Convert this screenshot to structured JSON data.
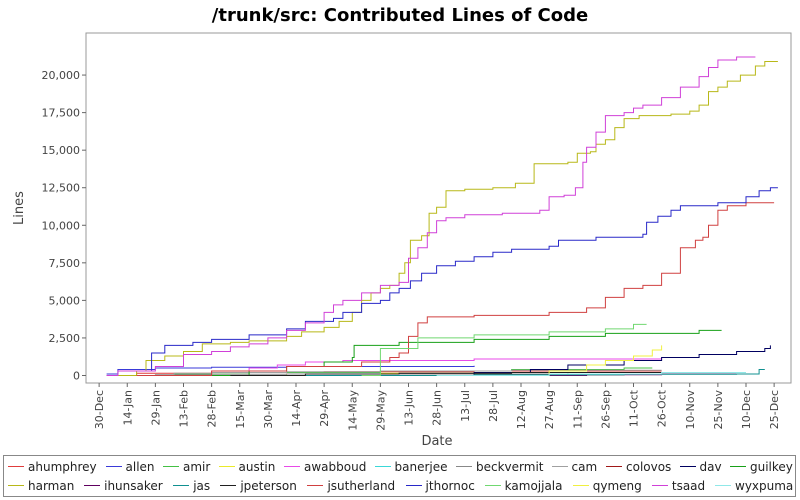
{
  "chart_data": {
    "type": "line",
    "title": "/trunk/src: Contributed Lines of Code",
    "xlabel": "Date",
    "ylabel": "Lines",
    "x_unit": "days since 30-Dec",
    "xlim": [
      -7,
      369
    ],
    "ylim": [
      -500,
      22800
    ],
    "x_ticks": [
      {
        "label": "30-Dec",
        "day": 0
      },
      {
        "label": "14-Jan",
        "day": 15
      },
      {
        "label": "29-Jan",
        "day": 30
      },
      {
        "label": "13-Feb",
        "day": 45
      },
      {
        "label": "28-Feb",
        "day": 60
      },
      {
        "label": "15-Mar",
        "day": 75
      },
      {
        "label": "30-Mar",
        "day": 90
      },
      {
        "label": "14-Apr",
        "day": 105
      },
      {
        "label": "29-Apr",
        "day": 120
      },
      {
        "label": "14-May",
        "day": 135
      },
      {
        "label": "29-May",
        "day": 150
      },
      {
        "label": "13-Jun",
        "day": 165
      },
      {
        "label": "28-Jun",
        "day": 180
      },
      {
        "label": "13-Jul",
        "day": 195
      },
      {
        "label": "28-Jul",
        "day": 210
      },
      {
        "label": "12-Aug",
        "day": 225
      },
      {
        "label": "27-Aug",
        "day": 240
      },
      {
        "label": "11-Sep",
        "day": 255
      },
      {
        "label": "26-Sep",
        "day": 270
      },
      {
        "label": "11-Oct",
        "day": 285
      },
      {
        "label": "26-Oct",
        "day": 300
      },
      {
        "label": "10-Nov",
        "day": 315
      },
      {
        "label": "25-Nov",
        "day": 330
      },
      {
        "label": "10-Dec",
        "day": 345
      },
      {
        "label": "25-Dec",
        "day": 360
      }
    ],
    "y_ticks": [
      {
        "label": "0",
        "value": 0
      },
      {
        "label": "2,500",
        "value": 2500
      },
      {
        "label": "5,000",
        "value": 5000
      },
      {
        "label": "7,500",
        "value": 7500
      },
      {
        "label": "10,000",
        "value": 10000
      },
      {
        "label": "12,500",
        "value": 12500
      },
      {
        "label": "15,000",
        "value": 15000
      },
      {
        "label": "17,500",
        "value": 17500
      },
      {
        "label": "20,000",
        "value": 20000
      }
    ],
    "legend_position": "bottom",
    "series": [
      {
        "name": "ahumphrey",
        "color": "#e03c3c",
        "points": [
          [
            4,
            0
          ],
          [
            20,
            150
          ],
          [
            60,
            200
          ],
          [
            120,
            250
          ],
          [
            200,
            300
          ],
          [
            300,
            300
          ]
        ]
      },
      {
        "name": "allen",
        "color": "#3a3ad8",
        "points": [
          [
            4,
            100
          ],
          [
            10,
            400
          ],
          [
            30,
            500
          ],
          [
            60,
            550
          ],
          [
            100,
            600
          ],
          [
            150,
            600
          ],
          [
            200,
            650
          ]
        ]
      },
      {
        "name": "amir",
        "color": "#44c044",
        "points": [
          [
            25,
            0
          ],
          [
            40,
            100
          ],
          [
            80,
            200
          ],
          [
            150,
            300
          ],
          [
            220,
            400
          ],
          [
            280,
            500
          ],
          [
            295,
            500
          ]
        ]
      },
      {
        "name": "austin",
        "color": "#eaea2a",
        "points": [
          [
            55,
            0
          ],
          [
            100,
            100
          ],
          [
            150,
            150
          ],
          [
            200,
            200
          ]
        ]
      },
      {
        "name": "awabboud",
        "color": "#e84ae8",
        "points": [
          [
            50,
            0
          ],
          [
            60,
            300
          ],
          [
            80,
            500
          ],
          [
            95,
            700
          ],
          [
            110,
            900
          ],
          [
            130,
            1000
          ],
          [
            200,
            1100
          ],
          [
            300,
            1200
          ]
        ]
      },
      {
        "name": "banerjee",
        "color": "#3ad8d8",
        "points": [
          [
            150,
            0
          ],
          [
            200,
            100
          ],
          [
            250,
            150
          ]
        ]
      },
      {
        "name": "beckvermit",
        "color": "#888888",
        "points": [
          [
            4,
            0
          ],
          [
            30,
            50
          ],
          [
            60,
            80
          ],
          [
            100,
            100
          ],
          [
            150,
            100
          ],
          [
            200,
            100
          ],
          [
            295,
            100
          ]
        ]
      },
      {
        "name": "cam",
        "color": "#a0a0a0",
        "points": [
          [
            25,
            0
          ],
          [
            40,
            150
          ],
          [
            60,
            200
          ],
          [
            100,
            250
          ],
          [
            150,
            300
          ],
          [
            220,
            350
          ],
          [
            300,
            350
          ]
        ]
      },
      {
        "name": "colovos",
        "color": "#a01818",
        "points": [
          [
            120,
            0
          ],
          [
            200,
            50
          ],
          [
            280,
            100
          ],
          [
            345,
            100
          ]
        ]
      },
      {
        "name": "dav",
        "color": "#000060",
        "points": [
          [
            160,
            0
          ],
          [
            200,
            200
          ],
          [
            230,
            400
          ],
          [
            250,
            700
          ],
          [
            280,
            1000
          ],
          [
            300,
            1200
          ],
          [
            320,
            1400
          ],
          [
            340,
            1600
          ],
          [
            355,
            1800
          ],
          [
            358,
            2000
          ]
        ]
      },
      {
        "name": "guilkey",
        "color": "#18a018",
        "points": [
          [
            55,
            0
          ],
          [
            80,
            300
          ],
          [
            100,
            600
          ],
          [
            120,
            900
          ],
          [
            135,
            1200
          ],
          [
            136,
            2000
          ],
          [
            160,
            2200
          ],
          [
            200,
            2400
          ],
          [
            240,
            2600
          ],
          [
            270,
            2800
          ],
          [
            300,
            2800
          ],
          [
            320,
            3000
          ],
          [
            332,
            3000
          ]
        ]
      },
      {
        "name": "harman",
        "color": "#b8b818",
        "points": [
          [
            4,
            0
          ],
          [
            20,
            300
          ],
          [
            25,
            1000
          ],
          [
            35,
            1300
          ],
          [
            45,
            1600
          ],
          [
            55,
            2100
          ],
          [
            70,
            2200
          ],
          [
            80,
            2300
          ],
          [
            100,
            2600
          ],
          [
            108,
            2900
          ],
          [
            120,
            3200
          ],
          [
            128,
            3600
          ],
          [
            135,
            4200
          ],
          [
            140,
            5000
          ],
          [
            145,
            5500
          ],
          [
            150,
            5800
          ],
          [
            155,
            6000
          ],
          [
            160,
            6800
          ],
          [
            163,
            7500
          ],
          [
            166,
            9000
          ],
          [
            172,
            9300
          ],
          [
            176,
            10800
          ],
          [
            180,
            11200
          ],
          [
            185,
            12300
          ],
          [
            195,
            12400
          ],
          [
            210,
            12500
          ],
          [
            222,
            12800
          ],
          [
            232,
            14100
          ],
          [
            250,
            14200
          ],
          [
            255,
            14800
          ],
          [
            262,
            14900
          ],
          [
            265,
            15400
          ],
          [
            270,
            15700
          ],
          [
            275,
            16500
          ],
          [
            280,
            17100
          ],
          [
            288,
            17300
          ],
          [
            305,
            17400
          ],
          [
            315,
            17600
          ],
          [
            320,
            18000
          ],
          [
            325,
            18900
          ],
          [
            330,
            19200
          ],
          [
            335,
            19600
          ],
          [
            342,
            20000
          ],
          [
            350,
            20600
          ],
          [
            355,
            20900
          ],
          [
            362,
            20900
          ]
        ]
      },
      {
        "name": "ihunsaker",
        "color": "#600060",
        "points": [
          [
            200,
            0
          ],
          [
            260,
            50
          ],
          [
            300,
            100
          ],
          [
            345,
            100
          ]
        ]
      },
      {
        "name": "jas",
        "color": "#109090",
        "points": [
          [
            100,
            0
          ],
          [
            200,
            50
          ],
          [
            280,
            80
          ],
          [
            340,
            100
          ],
          [
            352,
            400
          ],
          [
            355,
            400
          ]
        ]
      },
      {
        "name": "jpeterson",
        "color": "#202020",
        "points": [
          [
            70,
            0
          ],
          [
            110,
            100
          ],
          [
            160,
            150
          ],
          [
            220,
            200
          ],
          [
            300,
            200
          ]
        ]
      },
      {
        "name": "jsutherland",
        "color": "#d04040",
        "points": [
          [
            20,
            0
          ],
          [
            60,
            300
          ],
          [
            100,
            600
          ],
          [
            140,
            900
          ],
          [
            155,
            1200
          ],
          [
            160,
            1500
          ],
          [
            165,
            2600
          ],
          [
            170,
            3500
          ],
          [
            175,
            3900
          ],
          [
            200,
            4000
          ],
          [
            240,
            4200
          ],
          [
            260,
            4500
          ],
          [
            270,
            5200
          ],
          [
            280,
            5800
          ],
          [
            290,
            6000
          ],
          [
            300,
            6800
          ],
          [
            310,
            8500
          ],
          [
            318,
            9000
          ],
          [
            322,
            9200
          ],
          [
            325,
            10000
          ],
          [
            330,
            11000
          ],
          [
            335,
            11300
          ],
          [
            345,
            11500
          ],
          [
            360,
            11500
          ]
        ]
      },
      {
        "name": "jthornoc",
        "color": "#2828c8",
        "points": [
          [
            20,
            300
          ],
          [
            28,
            1500
          ],
          [
            35,
            2000
          ],
          [
            50,
            2200
          ],
          [
            60,
            2400
          ],
          [
            80,
            2700
          ],
          [
            100,
            3100
          ],
          [
            110,
            3600
          ],
          [
            125,
            3800
          ],
          [
            130,
            4200
          ],
          [
            140,
            4800
          ],
          [
            150,
            5000
          ],
          [
            155,
            5500
          ],
          [
            160,
            5800
          ],
          [
            166,
            6300
          ],
          [
            172,
            6800
          ],
          [
            180,
            7300
          ],
          [
            190,
            7600
          ],
          [
            200,
            7900
          ],
          [
            210,
            8200
          ],
          [
            220,
            8400
          ],
          [
            240,
            8600
          ],
          [
            245,
            9000
          ],
          [
            265,
            9200
          ],
          [
            290,
            9400
          ],
          [
            292,
            10200
          ],
          [
            298,
            10600
          ],
          [
            305,
            11000
          ],
          [
            310,
            11300
          ],
          [
            330,
            11500
          ],
          [
            345,
            11900
          ],
          [
            352,
            12300
          ],
          [
            358,
            12500
          ],
          [
            362,
            12500
          ]
        ]
      },
      {
        "name": "kamojjala",
        "color": "#70d870",
        "points": [
          [
            140,
            0
          ],
          [
            150,
            1800
          ],
          [
            170,
            2500
          ],
          [
            200,
            2700
          ],
          [
            240,
            2900
          ],
          [
            270,
            3100
          ],
          [
            285,
            3400
          ],
          [
            292,
            3400
          ]
        ]
      },
      {
        "name": "qymeng",
        "color": "#f0f040",
        "points": [
          [
            210,
            0
          ],
          [
            240,
            300
          ],
          [
            260,
            700
          ],
          [
            270,
            1000
          ],
          [
            285,
            1300
          ],
          [
            295,
            1700
          ],
          [
            300,
            2000
          ]
        ]
      },
      {
        "name": "tsaad",
        "color": "#d040d8",
        "points": [
          [
            4,
            0
          ],
          [
            10,
            300
          ],
          [
            30,
            600
          ],
          [
            45,
            1400
          ],
          [
            60,
            1600
          ],
          [
            70,
            1900
          ],
          [
            80,
            2100
          ],
          [
            90,
            2500
          ],
          [
            100,
            3000
          ],
          [
            110,
            3500
          ],
          [
            120,
            4200
          ],
          [
            125,
            4700
          ],
          [
            130,
            5000
          ],
          [
            140,
            5500
          ],
          [
            150,
            6000
          ],
          [
            160,
            6200
          ],
          [
            165,
            7800
          ],
          [
            170,
            8500
          ],
          [
            175,
            9500
          ],
          [
            180,
            10300
          ],
          [
            185,
            10500
          ],
          [
            195,
            10700
          ],
          [
            215,
            10800
          ],
          [
            235,
            11000
          ],
          [
            240,
            11900
          ],
          [
            248,
            12000
          ],
          [
            254,
            12500
          ],
          [
            258,
            14200
          ],
          [
            260,
            15200
          ],
          [
            265,
            16200
          ],
          [
            270,
            17300
          ],
          [
            280,
            17500
          ],
          [
            285,
            17800
          ],
          [
            290,
            18000
          ],
          [
            300,
            18500
          ],
          [
            310,
            19200
          ],
          [
            320,
            19900
          ],
          [
            325,
            20500
          ],
          [
            330,
            21000
          ],
          [
            340,
            21200
          ],
          [
            350,
            21200
          ]
        ]
      },
      {
        "name": "wyxpuma",
        "color": "#90e8e8",
        "points": [
          [
            180,
            0
          ],
          [
            240,
            100
          ],
          [
            300,
            200
          ],
          [
            345,
            200
          ]
        ]
      }
    ]
  }
}
